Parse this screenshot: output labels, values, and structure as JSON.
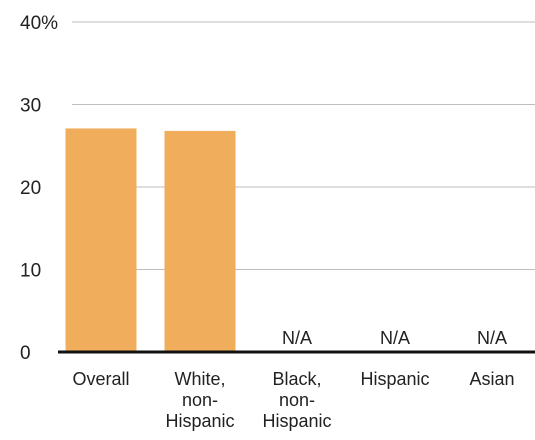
{
  "chart_data": {
    "type": "bar",
    "categories": [
      [
        "Overall"
      ],
      [
        "White,",
        "non-",
        "Hispanic"
      ],
      [
        "Black,",
        "non-",
        "Hispanic"
      ],
      [
        "Hispanic"
      ],
      [
        "Asian"
      ]
    ],
    "values": [
      27.1,
      26.8,
      null,
      null,
      null
    ],
    "missing_label": "N/A",
    "ylim": [
      0,
      40
    ],
    "yticks": [
      {
        "value": 0,
        "label": "0"
      },
      {
        "value": 10,
        "label": "10"
      },
      {
        "value": 20,
        "label": "20"
      },
      {
        "value": 30,
        "label": "30"
      },
      {
        "value": 40,
        "label": "40%"
      }
    ],
    "grid": true,
    "colors": {
      "bar": "#F0AD5C",
      "grid": "#bdbdbd",
      "axis": "#111111"
    }
  }
}
